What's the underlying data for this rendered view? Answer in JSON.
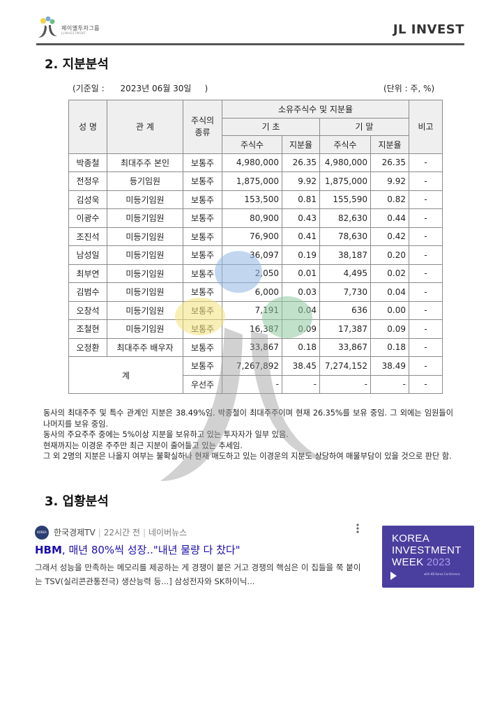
{
  "header": {
    "logo_text": "제이엘투자그룹",
    "logo_subtext": "JLINVESTMENT",
    "brand": "JL INVEST"
  },
  "section2": {
    "title": "2. 지분분석",
    "reference_date": "(기준일 :      2023년 06월 30일     )",
    "unit": "(단위 : 주, %)"
  },
  "table": {
    "headers": {
      "name": "성 명",
      "relation": "관 계",
      "stock_type": "주식의 종류",
      "holdings": "소유주식수 및 지분율",
      "period_start": "기 초",
      "period_end": "기 말",
      "shares": "주식수",
      "ratio": "지분율",
      "remarks": "비고"
    },
    "rows": [
      {
        "name": "박종철",
        "relation": "최대주주 본인",
        "type": "보통주",
        "start_shares": "4,980,000",
        "start_ratio": "26.35",
        "end_shares": "4,980,000",
        "end_ratio": "26.35",
        "remarks": "-"
      },
      {
        "name": "전정우",
        "relation": "등기임원",
        "type": "보통주",
        "start_shares": "1,875,000",
        "start_ratio": "9.92",
        "end_shares": "1,875,000",
        "end_ratio": "9.92",
        "remarks": "-"
      },
      {
        "name": "김성욱",
        "relation": "미등기임원",
        "type": "보통주",
        "start_shares": "153,500",
        "start_ratio": "0.81",
        "end_shares": "155,590",
        "end_ratio": "0.82",
        "remarks": "-"
      },
      {
        "name": "이광수",
        "relation": "미등기임원",
        "type": "보통주",
        "start_shares": "80,900",
        "start_ratio": "0.43",
        "end_shares": "82,630",
        "end_ratio": "0.44",
        "remarks": "-"
      },
      {
        "name": "조진석",
        "relation": "미등기임원",
        "type": "보통주",
        "start_shares": "76,900",
        "start_ratio": "0.41",
        "end_shares": "78,630",
        "end_ratio": "0.42",
        "remarks": "-"
      },
      {
        "name": "남성일",
        "relation": "미등기임원",
        "type": "보통주",
        "start_shares": "36,097",
        "start_ratio": "0.19",
        "end_shares": "38,187",
        "end_ratio": "0.20",
        "remarks": "-"
      },
      {
        "name": "최부연",
        "relation": "미등기임원",
        "type": "보통주",
        "start_shares": "2,050",
        "start_ratio": "0.01",
        "end_shares": "4,495",
        "end_ratio": "0.02",
        "remarks": "-"
      },
      {
        "name": "김범수",
        "relation": "미등기임원",
        "type": "보통주",
        "start_shares": "6,000",
        "start_ratio": "0.03",
        "end_shares": "7,730",
        "end_ratio": "0.04",
        "remarks": "-"
      },
      {
        "name": "오창석",
        "relation": "미등기임원",
        "type": "보통주",
        "start_shares": "7,191",
        "start_ratio": "0.04",
        "end_shares": "636",
        "end_ratio": "0.00",
        "remarks": "-"
      },
      {
        "name": "조철현",
        "relation": "미등기임원",
        "type": "보통주",
        "start_shares": "16,387",
        "start_ratio": "0.09",
        "end_shares": "17,387",
        "end_ratio": "0.09",
        "remarks": "-"
      },
      {
        "name": "오정환",
        "relation": "최대주주 배우자",
        "type": "보통주",
        "start_shares": "33,867",
        "start_ratio": "0.18",
        "end_shares": "33,867",
        "end_ratio": "0.18",
        "remarks": "-"
      }
    ],
    "total": {
      "label": "계",
      "common": {
        "type": "보통주",
        "start_shares": "7,267,892",
        "start_ratio": "38.45",
        "end_shares": "7,274,152",
        "end_ratio": "38.49",
        "remarks": "-"
      },
      "preferred": {
        "type": "우선주",
        "start_shares": "-",
        "start_ratio": "-",
        "end_shares": "-",
        "end_ratio": "-",
        "remarks": "-"
      }
    }
  },
  "analysis": {
    "lines": [
      "동사의 최대주주 및 특수 관계인 지분은 38.49%임. 박종철이 최대주주이며 현재 26.35%를 보유 중임. 그 외에는 임원들이 나머지를 보유 중임.",
      "동사의 주요주주 중에는 5%이상 지분을 보유하고 있는 투자자가 일부 있음.",
      "현재까지는 이경운 주주만 최근 지분이 줄어들고 있는 추세임.",
      "그 외 2명의 지분은 나올지 여부는 불확실하나 현재 매도하고 있는 이경운의 지분도 상당하여 매물부담이 있을 것으로 판단 함."
    ]
  },
  "section3": {
    "title": "3. 업황분석"
  },
  "news": {
    "source_logo_text": "KOREA TV",
    "source": "한국경제TV",
    "time": "22시간 전",
    "platform": "네이버뉴스",
    "more_icon": "more-vertical-icon",
    "title_highlight": "HBM",
    "title_rest": ", 매년 80%씩 성장..\"내년 물량 다 찼다\"",
    "snippet": "그래서 성능을 만족하는 메모리를 제공하는 게 경쟁이 붙은 거고 경쟁의 핵심은 이 칩들을 쭉 붙이는 TSV(실리콘관통전극) 생산능력 등...] 삼성전자와 SK하이닉...",
    "thumbnail": {
      "line1": "KOREA",
      "line2": "INVESTMENT",
      "line3": "WEEK",
      "year": "2023",
      "subtitle": "with KB Korea Conference"
    }
  },
  "colors": {
    "header_rule": "#555555",
    "link_blue": "#1a0dab",
    "thumb_bg": "#4a3f9e",
    "watermark_yellow": "#f3e27a",
    "watermark_blue": "#8fb7e2",
    "watermark_green": "#8fc9a0",
    "watermark_gray": "#9a9a9a"
  }
}
